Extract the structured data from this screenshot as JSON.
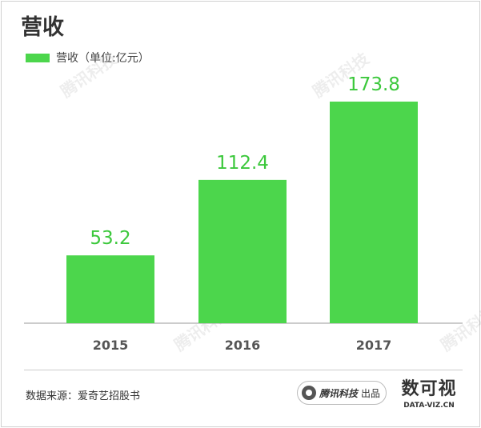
{
  "page": {
    "source_text": "数据来源：爱奇艺招股书",
    "producer_brand": "腾讯科技",
    "producer_suffix": "出品",
    "brand_cn": "数可视",
    "brand_en": "DATA-VIZ.CN",
    "watermark_text": "腾讯科技"
  },
  "chart_data": {
    "type": "bar",
    "title": "营收",
    "categories": [
      "2015",
      "2016",
      "2017"
    ],
    "series": [
      {
        "name": "营收（单位:亿元）",
        "values": [
          53.2,
          112.4,
          173.8
        ]
      }
    ],
    "data_labels": [
      "53.2",
      "112.4",
      "173.8"
    ],
    "ylim": [
      0,
      200
    ],
    "xlabel": "",
    "ylabel": "",
    "grid": false,
    "legend": "top-left",
    "colors": {
      "bar": "#4cd64c",
      "label": "#3cc83c",
      "axis": "#999999",
      "tick": "#555555"
    }
  }
}
